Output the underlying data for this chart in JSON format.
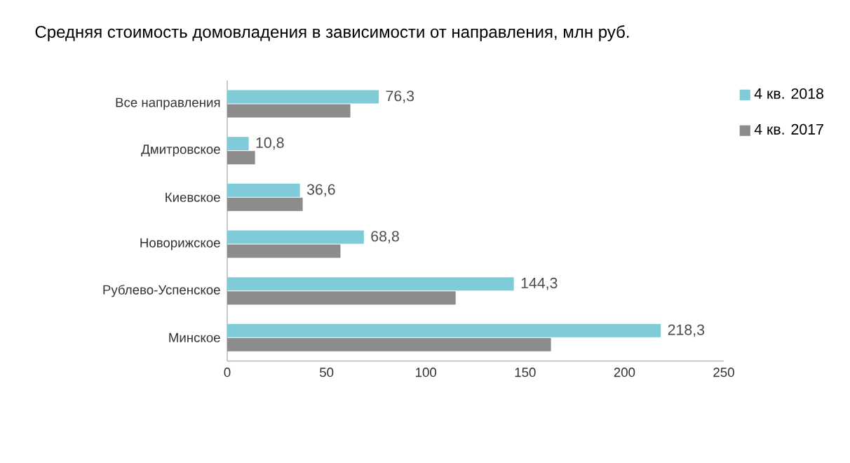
{
  "chart_data": {
    "type": "bar",
    "orientation": "horizontal",
    "title": "Средняя стоимость домовладения в зависимости от направления, млн руб.",
    "categories": [
      "Все направления",
      "Дмитровское",
      "Киевское",
      "Новорижское",
      "Рублево-Успенское",
      "Минское"
    ],
    "series": [
      {
        "name": "4 кв. 2018",
        "color": "#7fcbd7",
        "values": [
          76.3,
          10.8,
          36.6,
          68.8,
          144.3,
          218.3
        ],
        "value_labels": [
          "76,3",
          "10,8",
          "36,6",
          "68,8",
          "144,3",
          "218,3"
        ]
      },
      {
        "name": "4 кв. 2017",
        "color": "#8c8c8c",
        "values": [
          62,
          14,
          38,
          57,
          115,
          163
        ]
      }
    ],
    "xlim": [
      0,
      250
    ],
    "xticks": [
      0,
      50,
      100,
      150,
      200,
      250
    ],
    "legend": "top right",
    "grid": false
  }
}
